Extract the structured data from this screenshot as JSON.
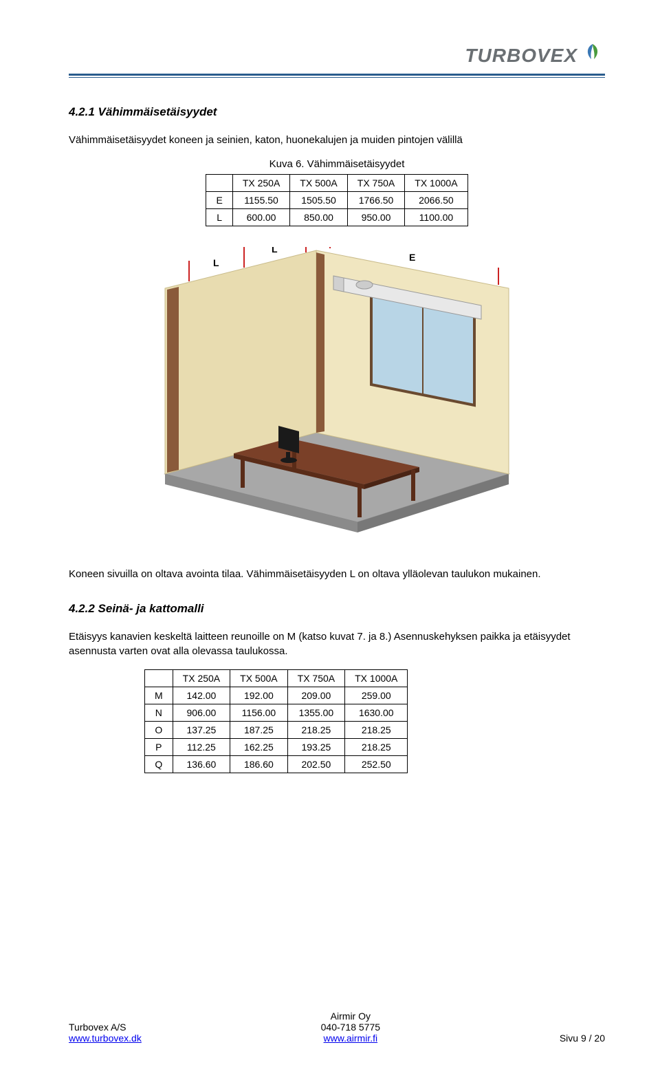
{
  "brand": {
    "name": "TURBOVEX"
  },
  "colors": {
    "rule": "#2a5c8d",
    "logo_text": "#6a6f73",
    "leaf_green": "#4a9b3e",
    "leaf_blue": "#3a78b5",
    "wall": "#e8dcb0",
    "floor": "#a0a0a0",
    "desk": "#7a4028",
    "window": "#b8d5e6"
  },
  "section1": {
    "heading": "4.2.1 Vähimmäisetäisyydet",
    "intro": "Vähimmäisetäisyydet koneen ja seinien, katon, huonekalujen ja muiden pintojen välillä",
    "caption": "Kuva 6. Vähimmäisetäisyydet",
    "table": {
      "columns": [
        "TX 250A",
        "TX 500A",
        "TX 750A",
        "TX 1000A"
      ],
      "rows": [
        {
          "label": "E",
          "values": [
            "1155.50",
            "1505.50",
            "1766.50",
            "2066.50"
          ]
        },
        {
          "label": "L",
          "values": [
            "600.00",
            "850.00",
            "950.00",
            "1100.00"
          ]
        }
      ]
    },
    "note": "Koneen sivuilla on oltava avointa tilaa. Vähimmäisetäisyyden L on oltava ylläolevan taulukon mukainen."
  },
  "diagram": {
    "label_L": "L",
    "label_E": "E"
  },
  "section2": {
    "heading": "4.2.2 Seinä- ja kattomalli",
    "intro": "Etäisyys kanavien keskeltä laitteen reunoille on M (katso kuvat 7. ja 8.) Asennuskehyksen paikka ja etäisyydet asennusta varten ovat alla olevassa taulukossa.",
    "table": {
      "columns": [
        "TX 250A",
        "TX 500A",
        "TX 750A",
        "TX 1000A"
      ],
      "rows": [
        {
          "label": "M",
          "values": [
            "142.00",
            "192.00",
            "209.00",
            "259.00"
          ]
        },
        {
          "label": "N",
          "values": [
            "906.00",
            "1156.00",
            "1355.00",
            "1630.00"
          ]
        },
        {
          "label": "O",
          "values": [
            "137.25",
            "187.25",
            "218.25",
            "218.25"
          ]
        },
        {
          "label": "P",
          "values": [
            "112.25",
            "162.25",
            "193.25",
            "218.25"
          ]
        },
        {
          "label": "Q",
          "values": [
            "136.60",
            "186.60",
            "202.50",
            "252.50"
          ]
        }
      ]
    }
  },
  "footer": {
    "left": {
      "line1": "Turbovex A/S",
      "line2": "www.turbovex.dk"
    },
    "center": {
      "line1": "Airmir Oy",
      "line2": "040-718 5775",
      "line3": "www.airmir.fi"
    },
    "right": "Sivu 9 / 20"
  }
}
